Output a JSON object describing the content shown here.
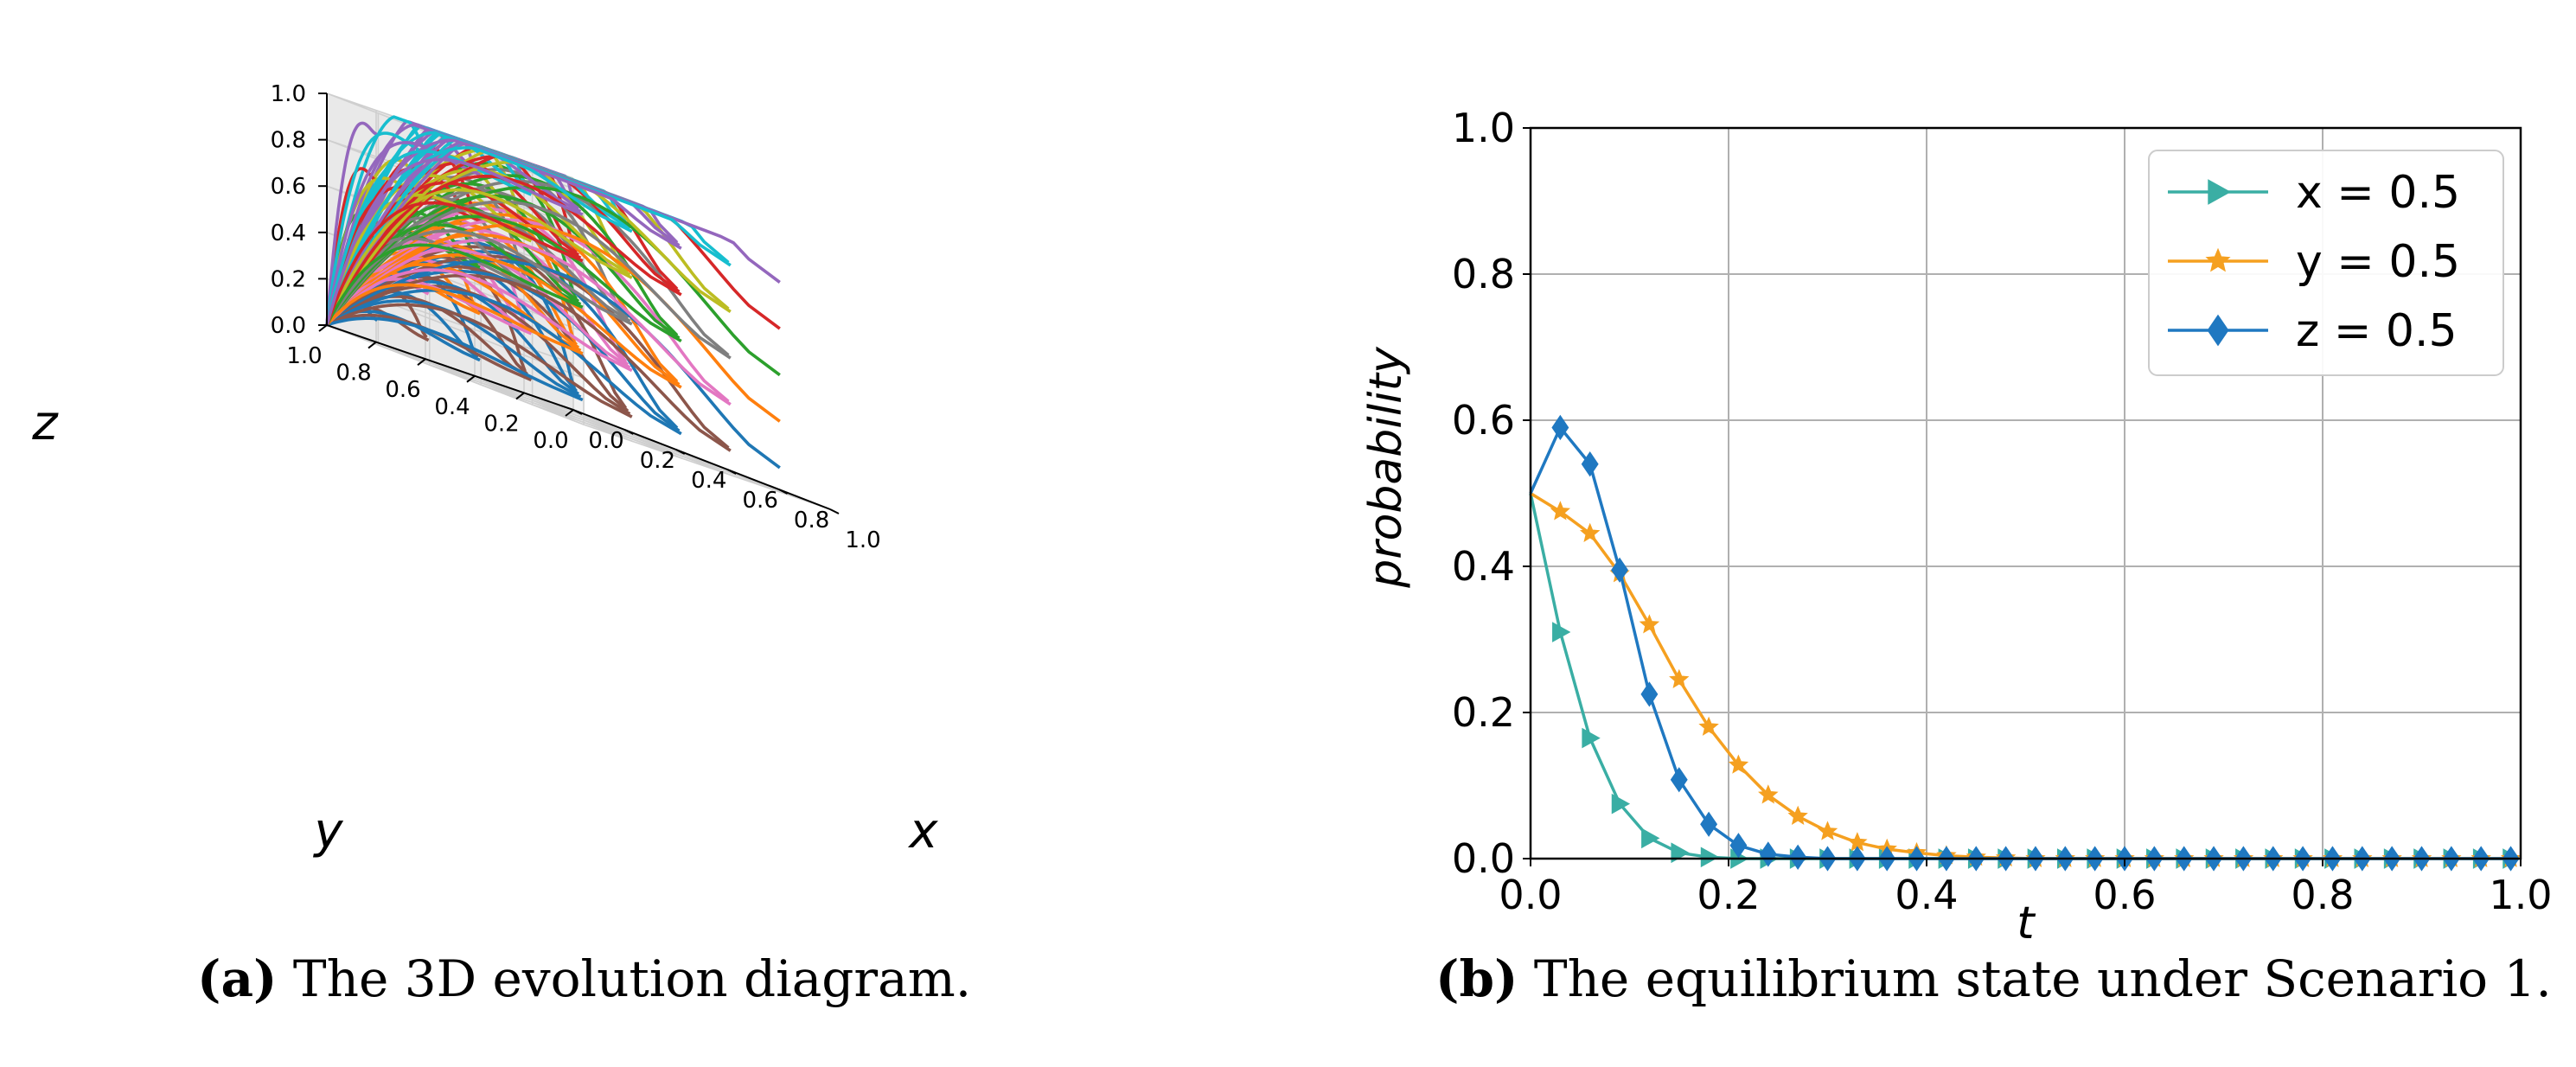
{
  "chart_data": [
    {
      "type": "line3d",
      "description_label": "3D evolution diagram",
      "xlabel": "x",
      "ylabel": "y",
      "zlabel": "z",
      "xlim": [
        0,
        1
      ],
      "ylim": [
        0,
        1
      ],
      "zlim": [
        0,
        1
      ],
      "x_ticks": [
        "0.0",
        "0.2",
        "0.4",
        "0.6",
        "0.8",
        "1.0"
      ],
      "y_ticks": [
        "0.0",
        "0.2",
        "0.4",
        "0.6",
        "0.8",
        "1.0"
      ],
      "z_ticks": [
        "0.0",
        "0.2",
        "0.4",
        "0.6",
        "0.8",
        "1.0"
      ],
      "grid": true,
      "start_grid": [
        0.1,
        0.3,
        0.5,
        0.7,
        0.9
      ],
      "attractor": [
        0,
        1,
        0
      ],
      "series_colors": [
        "#1f77b4",
        "#ff7f0e",
        "#2ca02c",
        "#d62728",
        "#9467bd",
        "#8c564b",
        "#e377c2",
        "#7f7f7f",
        "#bcbd22",
        "#17becf"
      ]
    },
    {
      "type": "line",
      "xlabel": "t",
      "ylabel": "probability",
      "xlim": [
        0,
        1
      ],
      "ylim": [
        0,
        1
      ],
      "x_ticks": [
        "0.0",
        "0.2",
        "0.4",
        "0.6",
        "0.8",
        "1.0"
      ],
      "y_ticks": [
        "0.0",
        "0.2",
        "0.4",
        "0.6",
        "0.8",
        "1.0"
      ],
      "grid": true,
      "legend_position": "top-right",
      "series": [
        {
          "name": "x = 0.5",
          "var": "x",
          "value": "0.5",
          "color": "#3aaea4",
          "marker": "triangle-right",
          "x": [
            0,
            0.03,
            0.06,
            0.09,
            0.12,
            0.15,
            0.18,
            0.21,
            0.24,
            0.27,
            0.3,
            0.33,
            0.36,
            0.39,
            0.42,
            0.45,
            0.48,
            0.51,
            0.54,
            0.57,
            0.6,
            0.63,
            0.66,
            0.69,
            0.72,
            0.75,
            0.78,
            0.81,
            0.84,
            0.87,
            0.9,
            0.93,
            0.96,
            0.99
          ],
          "values": [
            0.5,
            0.31,
            0.165,
            0.075,
            0.028,
            0.008,
            0.002,
            0,
            0,
            0,
            0,
            0,
            0,
            0,
            0,
            0,
            0,
            0,
            0,
            0,
            0,
            0,
            0,
            0,
            0,
            0,
            0,
            0,
            0,
            0,
            0,
            0,
            0,
            0
          ]
        },
        {
          "name": "y = 0.5",
          "var": "y",
          "value": "0.5",
          "color": "#f5a020",
          "marker": "star",
          "x": [
            0,
            0.03,
            0.06,
            0.09,
            0.12,
            0.15,
            0.18,
            0.21,
            0.24,
            0.27,
            0.3,
            0.33,
            0.36,
            0.39,
            0.42,
            0.45,
            0.48,
            0.51,
            0.54,
            0.57,
            0.6,
            0.63,
            0.66,
            0.69,
            0.72,
            0.75,
            0.78,
            0.81,
            0.84,
            0.87,
            0.9,
            0.93,
            0.96,
            0.99
          ],
          "values": [
            0.5,
            0.475,
            0.445,
            0.39,
            0.32,
            0.245,
            0.18,
            0.128,
            0.087,
            0.058,
            0.037,
            0.022,
            0.013,
            0.008,
            0.004,
            0.002,
            0.001,
            0,
            0,
            0,
            0,
            0,
            0,
            0,
            0,
            0,
            0,
            0,
            0,
            0,
            0,
            0,
            0,
            0
          ]
        },
        {
          "name": "z = 0.5",
          "var": "z",
          "value": "0.5",
          "color": "#1f78c1",
          "marker": "diamond",
          "x": [
            0,
            0.03,
            0.06,
            0.09,
            0.12,
            0.15,
            0.18,
            0.21,
            0.24,
            0.27,
            0.3,
            0.33,
            0.36,
            0.39,
            0.42,
            0.45,
            0.48,
            0.51,
            0.54,
            0.57,
            0.6,
            0.63,
            0.66,
            0.69,
            0.72,
            0.75,
            0.78,
            0.81,
            0.84,
            0.87,
            0.9,
            0.93,
            0.96,
            0.99
          ],
          "values": [
            0.5,
            0.59,
            0.54,
            0.395,
            0.225,
            0.108,
            0.047,
            0.018,
            0.006,
            0.002,
            0,
            0,
            0,
            0,
            0,
            0,
            0,
            0,
            0,
            0,
            0,
            0,
            0,
            0,
            0,
            0,
            0,
            0,
            0,
            0,
            0,
            0,
            0,
            0
          ]
        }
      ]
    }
  ],
  "captions": {
    "a_tag": "(a)",
    "a_text": "The 3D evolution diagram.",
    "b_tag": "(b)",
    "b_text": "The equilibrium state under Scenario 1."
  }
}
